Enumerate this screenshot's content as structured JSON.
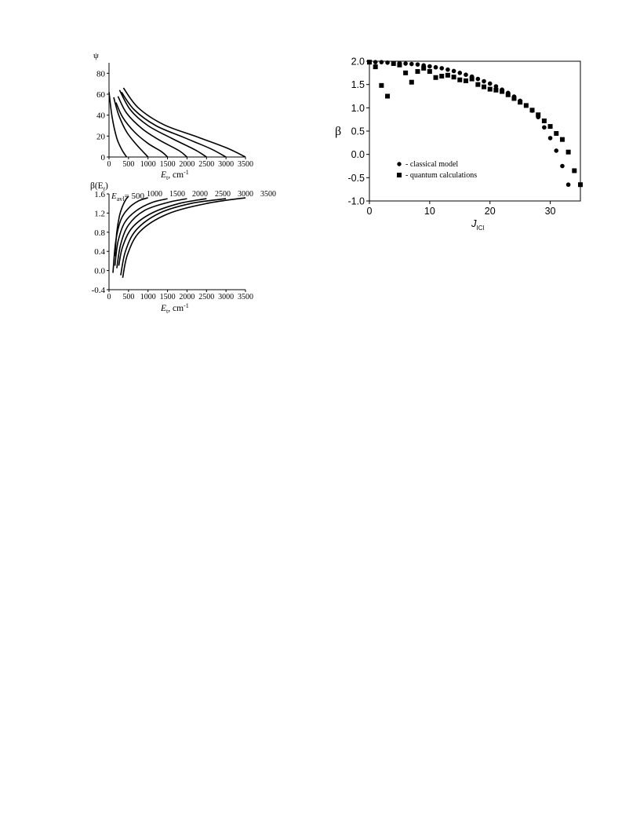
{
  "chart_data": [
    {
      "id": "psi",
      "type": "line",
      "ylabel": "ψ",
      "xlabel_main": "E",
      "xlabel_sub": "t",
      "xlabel_unit": ", cm",
      "xlabel_sup": "-1",
      "xlim": [
        0,
        3500
      ],
      "ylim": [
        0,
        90
      ],
      "xticks": [
        0,
        500,
        1000,
        1500,
        2000,
        2500,
        3000,
        3500
      ],
      "yticks": [
        0,
        20,
        40,
        60,
        80
      ],
      "series": [
        {
          "x": [
            0,
            80,
            200,
            330,
            450
          ],
          "y": [
            62,
            38,
            18,
            7,
            0
          ]
        },
        {
          "x": [
            120,
            250,
            450,
            700,
            900,
            1000
          ],
          "y": [
            57,
            40,
            24,
            12,
            4,
            0
          ]
        },
        {
          "x": [
            180,
            350,
            650,
            1000,
            1350,
            1500
          ],
          "y": [
            52,
            38,
            24,
            13,
            5,
            0
          ]
        },
        {
          "x": [
            230,
            450,
            850,
            1300,
            1800,
            2000
          ],
          "y": [
            58,
            42,
            27,
            16,
            6,
            0
          ]
        },
        {
          "x": [
            270,
            550,
            1000,
            1600,
            2200,
            2500
          ],
          "y": [
            64,
            45,
            30,
            18,
            7,
            0
          ]
        },
        {
          "x": [
            320,
            650,
            1200,
            1900,
            2600,
            3000
          ],
          "y": [
            62,
            45,
            30,
            19,
            8,
            0
          ]
        },
        {
          "x": [
            370,
            750,
            1400,
            2200,
            3000,
            3500
          ],
          "y": [
            66,
            47,
            31,
            20,
            9,
            0
          ]
        }
      ]
    },
    {
      "id": "beta-et",
      "type": "line",
      "ylabel_main": "β(E",
      "ylabel_sub": "t",
      "ylabel_end": ")",
      "xlabel_main": "E",
      "xlabel_sub": "t",
      "xlabel_unit": ", cm",
      "xlabel_sup": "-1",
      "legend_prefix": "E",
      "legend_sub": "avl",
      "legend_eq": "= 500",
      "top_labels": [
        "1000",
        "1500",
        "2000",
        "2500",
        "3000",
        "3500"
      ],
      "xlim": [
        0,
        3500
      ],
      "ylim": [
        -0.4,
        1.6
      ],
      "xticks": [
        0,
        500,
        1000,
        1500,
        2000,
        2500,
        3000,
        3500
      ],
      "ytick_labels": [
        "-0.4",
        "0.0",
        "0.4",
        "0.8",
        "1.2",
        "1.6"
      ],
      "yticks": [
        -0.4,
        0.0,
        0.4,
        0.8,
        1.2,
        1.6
      ],
      "series": [
        {
          "x": [
            150,
            200,
            270,
            350,
            430,
            500
          ],
          "y": [
            0.3,
            0.8,
            1.15,
            1.35,
            1.48,
            1.55
          ]
        },
        {
          "x": [
            100,
            170,
            300,
            500,
            750,
            1000
          ],
          "y": [
            -0.05,
            0.6,
            1.05,
            1.3,
            1.45,
            1.52
          ]
        },
        {
          "x": [
            150,
            230,
            400,
            700,
            1100,
            1500
          ],
          "y": [
            0.1,
            0.6,
            1.0,
            1.25,
            1.42,
            1.5
          ]
        },
        {
          "x": [
            200,
            300,
            500,
            900,
            1500,
            2000
          ],
          "y": [
            0.05,
            0.55,
            0.95,
            1.25,
            1.42,
            1.5
          ]
        },
        {
          "x": [
            250,
            350,
            600,
            1100,
            1800,
            2500
          ],
          "y": [
            0.1,
            0.5,
            0.9,
            1.2,
            1.4,
            1.5
          ]
        },
        {
          "x": [
            300,
            420,
            700,
            1300,
            2100,
            3000
          ],
          "y": [
            -0.1,
            0.4,
            0.85,
            1.2,
            1.4,
            1.5
          ]
        },
        {
          "x": [
            350,
            480,
            800,
            1500,
            2500,
            3500
          ],
          "y": [
            -0.15,
            0.35,
            0.82,
            1.18,
            1.4,
            1.52
          ]
        }
      ]
    },
    {
      "id": "beta-j",
      "type": "scatter",
      "ylabel": "β",
      "xlabel_main": "J",
      "xlabel_sub": "ICl",
      "xlim": [
        0,
        35
      ],
      "ylim": [
        -1.0,
        2.0
      ],
      "xticks": [
        0,
        10,
        20,
        30
      ],
      "yticks": [
        -1.0,
        -0.5,
        0.0,
        0.5,
        1.0,
        1.5,
        2.0
      ],
      "ytick_labels": [
        "-1.0",
        "-0.5",
        "0.0",
        "0.5",
        "1.0",
        "1.5",
        "2.0"
      ],
      "legend": [
        "- classical model",
        "- quantum calculations"
      ],
      "series": [
        {
          "name": "classical model",
          "marker": "circle",
          "x": [
            0,
            1,
            2,
            3,
            4,
            5,
            6,
            7,
            8,
            9,
            10,
            11,
            12,
            13,
            14,
            15,
            16,
            17,
            18,
            19,
            20,
            21,
            22,
            23,
            24,
            25,
            26,
            27,
            28,
            29,
            30,
            31,
            32,
            33
          ],
          "y": [
            1.98,
            1.98,
            1.98,
            1.97,
            1.96,
            1.96,
            1.95,
            1.94,
            1.93,
            1.91,
            1.89,
            1.87,
            1.85,
            1.82,
            1.79,
            1.75,
            1.71,
            1.67,
            1.62,
            1.57,
            1.52,
            1.46,
            1.39,
            1.32,
            1.24,
            1.15,
            1.05,
            0.94,
            0.8,
            0.58,
            0.35,
            0.08,
            -0.25,
            -0.65
          ]
        },
        {
          "name": "quantum calculations",
          "marker": "square",
          "x": [
            0,
            1,
            2,
            3,
            4,
            5,
            6,
            7,
            8,
            9,
            10,
            11,
            12,
            13,
            14,
            15,
            16,
            17,
            18,
            19,
            20,
            21,
            22,
            23,
            24,
            25,
            26,
            27,
            28,
            29,
            30,
            31,
            32,
            33,
            34,
            35
          ],
          "y": [
            1.98,
            1.88,
            1.48,
            1.25,
            1.95,
            1.92,
            1.75,
            1.55,
            1.78,
            1.85,
            1.78,
            1.65,
            1.68,
            1.7,
            1.66,
            1.6,
            1.58,
            1.62,
            1.5,
            1.45,
            1.4,
            1.38,
            1.35,
            1.28,
            1.2,
            1.12,
            1.05,
            0.95,
            0.85,
            0.72,
            0.6,
            0.45,
            0.32,
            0.05,
            -0.35,
            -0.65
          ]
        }
      ]
    }
  ]
}
